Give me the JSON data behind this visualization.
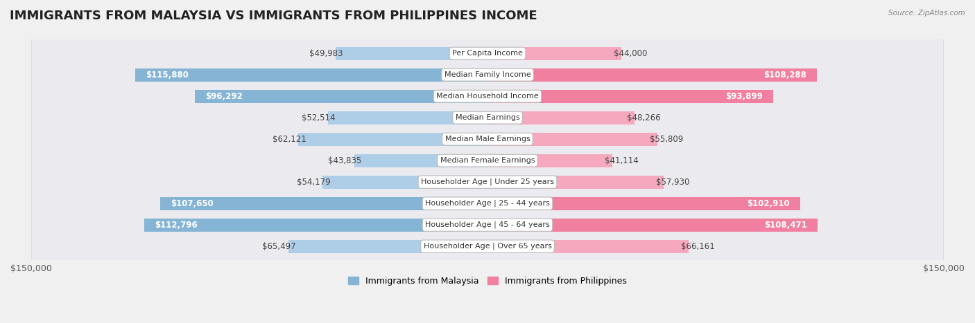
{
  "title": "IMMIGRANTS FROM MALAYSIA VS IMMIGRANTS FROM PHILIPPINES INCOME",
  "source": "Source: ZipAtlas.com",
  "categories": [
    "Per Capita Income",
    "Median Family Income",
    "Median Household Income",
    "Median Earnings",
    "Median Male Earnings",
    "Median Female Earnings",
    "Householder Age | Under 25 years",
    "Householder Age | 25 - 44 years",
    "Householder Age | 45 - 64 years",
    "Householder Age | Over 65 years"
  ],
  "malaysia_values": [
    49983,
    115880,
    96292,
    52514,
    62121,
    43835,
    54179,
    107650,
    112796,
    65497
  ],
  "philippines_values": [
    44000,
    108288,
    93899,
    48266,
    55809,
    41114,
    57930,
    102910,
    108471,
    66161
  ],
  "malaysia_color": "#85b4d4",
  "philippines_color": "#f07fa0",
  "malaysia_color_light": "#aecde6",
  "philippines_color_light": "#f5a8be",
  "malaysia_label": "Immigrants from Malaysia",
  "philippines_label": "Immigrants from Philippines",
  "xlim": 150000,
  "background_color": "#f0f0f0",
  "row_bg": "#e8e8ec",
  "title_fontsize": 13,
  "value_fontsize": 8.5,
  "label_fontsize": 8,
  "inside_threshold": 75000
}
